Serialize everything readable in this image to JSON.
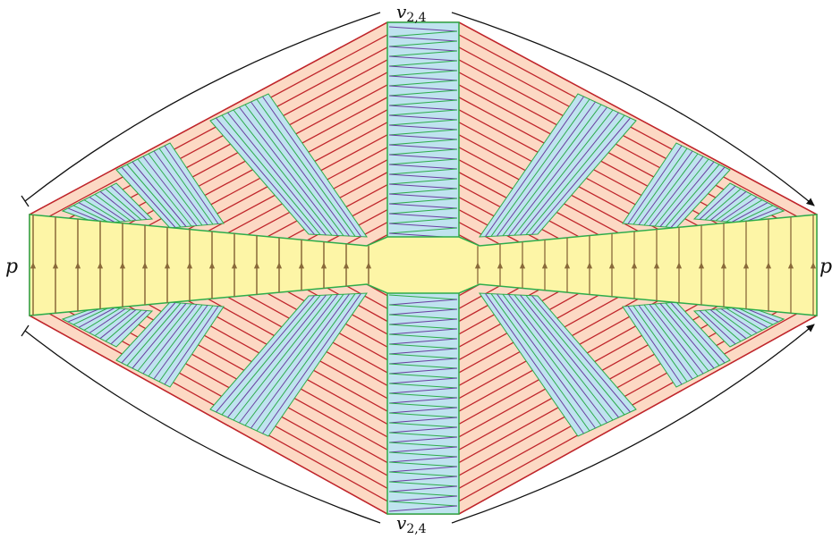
{
  "labels": {
    "top": {
      "main": "v",
      "sub": "2,4"
    },
    "bottom": {
      "main": "v",
      "sub": "2,4"
    },
    "left": "p",
    "right": "p"
  },
  "colors": {
    "red_edge": "#c0262c",
    "red_fill": "#fcd9c4",
    "blue_fill": "#bfe3ef",
    "green_edge": "#2cac4a",
    "purple_edge": "#6a3fa0",
    "yellow_fill": "#fdf5a6",
    "brown_edge": "#8a6a3a",
    "bracket": "#111111"
  }
}
